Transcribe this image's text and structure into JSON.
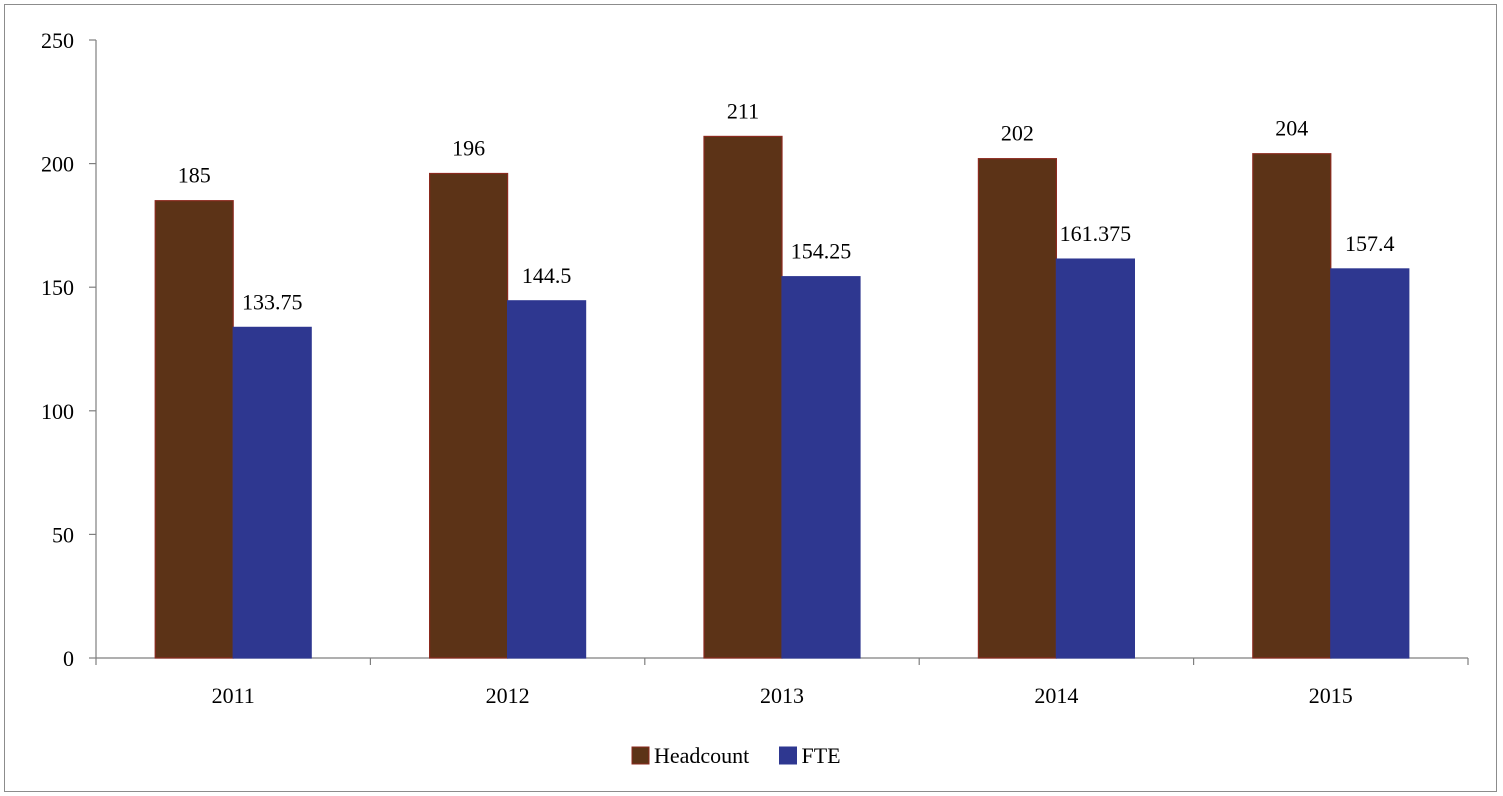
{
  "chart_data": {
    "type": "bar",
    "categories": [
      "2011",
      "2012",
      "2013",
      "2014",
      "2015"
    ],
    "series": [
      {
        "name": "Headcount",
        "values": [
          185,
          196,
          211,
          202,
          204
        ],
        "labels": [
          "185",
          "196",
          "211",
          "202",
          "204"
        ],
        "color": "#5c3317",
        "stroke": "#8b2a1e"
      },
      {
        "name": "FTE",
        "values": [
          133.75,
          144.5,
          154.25,
          161.375,
          157.4
        ],
        "labels": [
          "133.75",
          "144.5",
          "154.25",
          "161.375",
          "157.4"
        ],
        "color": "#2e3790",
        "stroke": "#2e3790"
      }
    ],
    "title": "",
    "xlabel": "",
    "ylabel": "",
    "ylim": [
      0,
      250
    ],
    "yticks": [
      "0",
      "50",
      "100",
      "150",
      "200",
      "250"
    ],
    "grid": false,
    "legend_position": "bottom-center"
  }
}
